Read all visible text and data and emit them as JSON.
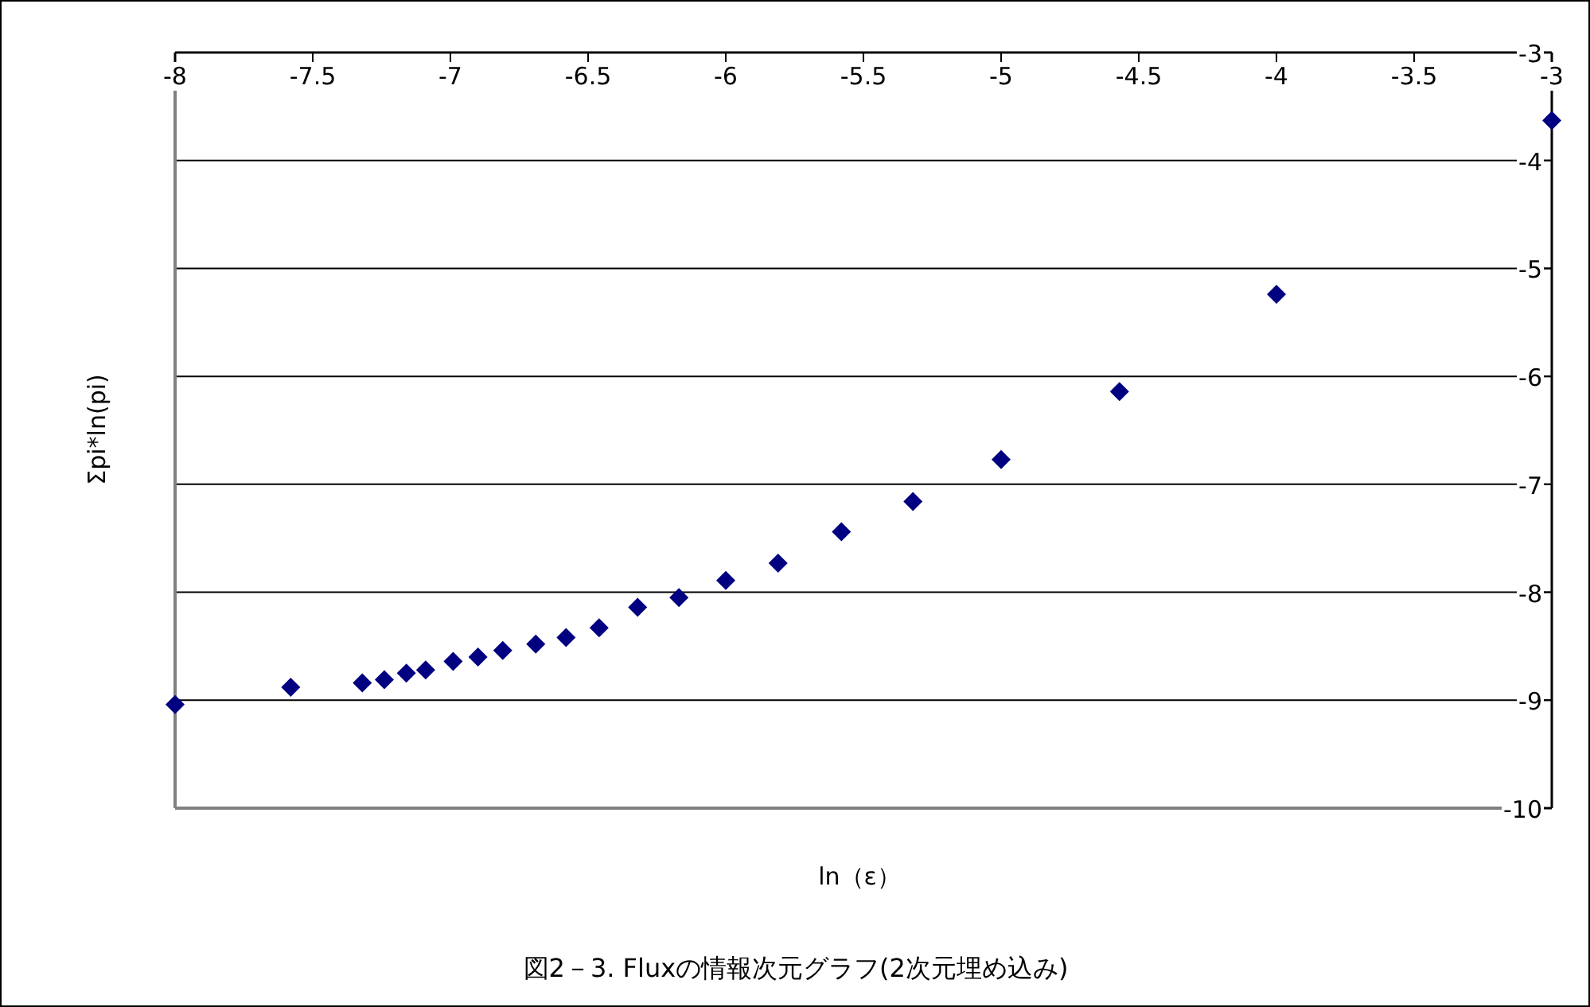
{
  "chart_data": {
    "type": "scatter",
    "title": "図2－3. Fluxの情報次元グラフ(2次元埋め込み)",
    "xlabel": "ln（ε）",
    "ylabel": "Σpi*ln(pi)",
    "x": [
      -8,
      -7.58,
      -7.32,
      -7.24,
      -7.16,
      -7.09,
      -6.99,
      -6.9,
      -6.81,
      -6.69,
      -6.58,
      -6.46,
      -6.32,
      -6.17,
      -6.0,
      -5.81,
      -5.58,
      -5.32,
      -5.0,
      -4.57,
      -4.0,
      -3.0
    ],
    "series": [
      {
        "color": "#000080",
        "values": [
          -9.04,
          -8.88,
          -8.84,
          -8.81,
          -8.75,
          -8.72,
          -8.64,
          -8.6,
          -8.54,
          -8.48,
          -8.42,
          -8.33,
          -8.14,
          -8.05,
          -7.89,
          -7.73,
          -7.44,
          -7.16,
          -6.77,
          -6.14,
          -5.24,
          -3.63
        ]
      }
    ],
    "xlim": [
      -8,
      -3
    ],
    "ylim": [
      -10,
      -3
    ],
    "xticks": [
      -8,
      -7.5,
      -7,
      -6.5,
      -6,
      -5.5,
      -5,
      -4.5,
      -4,
      -3.5,
      -3
    ],
    "yticks": [
      -10,
      -9,
      -8,
      -7,
      -6,
      -5,
      -4,
      -3
    ],
    "grid": "y",
    "marker": "diamond"
  }
}
